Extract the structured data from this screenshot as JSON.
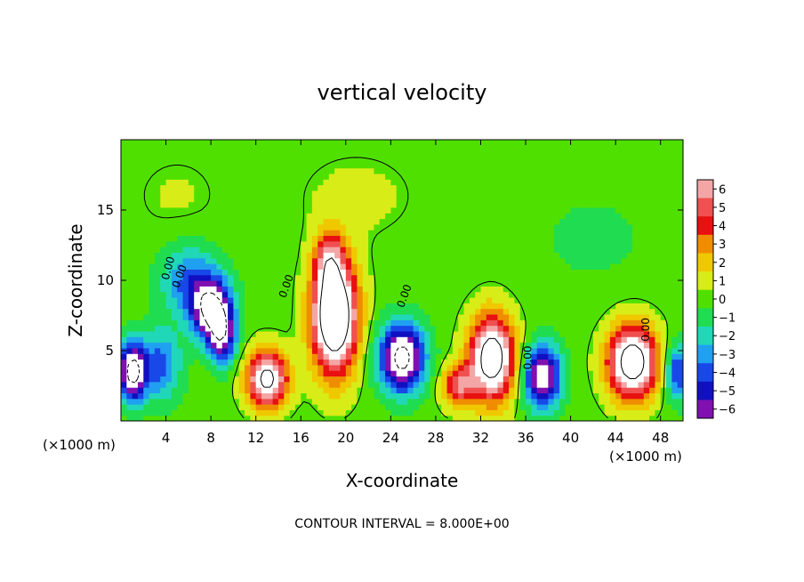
{
  "chart_data": {
    "type": "heatmap",
    "title": "vertical velocity",
    "xlabel": "X-coordinate",
    "ylabel": "Z-coordinate",
    "x_unit_left": "(×1000 m)",
    "x_unit_right": "(×1000 m)",
    "xlim": [
      0,
      50
    ],
    "ylim": [
      0,
      20
    ],
    "x_ticks": [
      4,
      8,
      12,
      16,
      20,
      24,
      28,
      32,
      36,
      40,
      44,
      48
    ],
    "y_ticks": [
      5,
      10,
      15
    ],
    "colorbar": {
      "levels": [
        6,
        5,
        4,
        3,
        2,
        1,
        0,
        -1,
        -2,
        -3,
        -4,
        -5,
        -6
      ],
      "colors": [
        "#f4a6a6",
        "#f05050",
        "#e81010",
        "#f08c00",
        "#f0c800",
        "#d8ec18",
        "#50e000",
        "#20dc50",
        "#20d8b8",
        "#20a0f0",
        "#1848e8",
        "#1010c0",
        "#8010b0"
      ]
    },
    "contour_interval_text": "CONTOUR INTERVAL = 8.000E+00",
    "contour_labels": [
      "0.00",
      "0.00",
      "0.00",
      "0.00",
      "0.00",
      "0.00"
    ],
    "cells": [
      {
        "x": 1,
        "z": 3.5,
        "w": -9,
        "sx": 1.2,
        "sz": 2.0
      },
      {
        "x": 3.5,
        "z": 4,
        "w": -4,
        "sx": 1.8,
        "sz": 2.5
      },
      {
        "x": 8,
        "z": 8,
        "w": -8,
        "sx": 1.8,
        "sz": 2.2
      },
      {
        "x": 9,
        "z": 6,
        "w": -6,
        "sx": 1.2,
        "sz": 2.0
      },
      {
        "x": 6,
        "z": 10,
        "w": -3.5,
        "sx": 2.5,
        "sz": 2.5
      },
      {
        "x": 13,
        "z": 3,
        "w": 9,
        "sx": 1.8,
        "sz": 2.0
      },
      {
        "x": 19,
        "z": 7.5,
        "w": 12,
        "sx": 2.0,
        "sz": 4.0
      },
      {
        "x": 18.5,
        "z": 11.5,
        "w": 4,
        "sx": 1.2,
        "sz": 2.0
      },
      {
        "x": 25,
        "z": 4.5,
        "w": -9,
        "sx": 2.0,
        "sz": 2.4
      },
      {
        "x": 33,
        "z": 4.5,
        "w": 10,
        "sx": 2.0,
        "sz": 3.0
      },
      {
        "x": 37.5,
        "z": 3.2,
        "w": -8,
        "sx": 1.6,
        "sz": 2.2
      },
      {
        "x": 45.5,
        "z": 4.2,
        "w": 10,
        "sx": 2.2,
        "sz": 2.6
      },
      {
        "x": 49.5,
        "z": 3.5,
        "w": -5,
        "sx": 1.0,
        "sz": 2.0
      },
      {
        "x": 30,
        "z": 2.5,
        "w": 5,
        "sx": 1.5,
        "sz": 1.5
      },
      {
        "x": 21,
        "z": 16,
        "w": 0.8,
        "sx": 5,
        "sz": 3
      },
      {
        "x": 42,
        "z": 13,
        "w": -0.7,
        "sx": 6,
        "sz": 4
      },
      {
        "x": 5,
        "z": 16,
        "w": 0.6,
        "sx": 4,
        "sz": 3
      }
    ]
  }
}
